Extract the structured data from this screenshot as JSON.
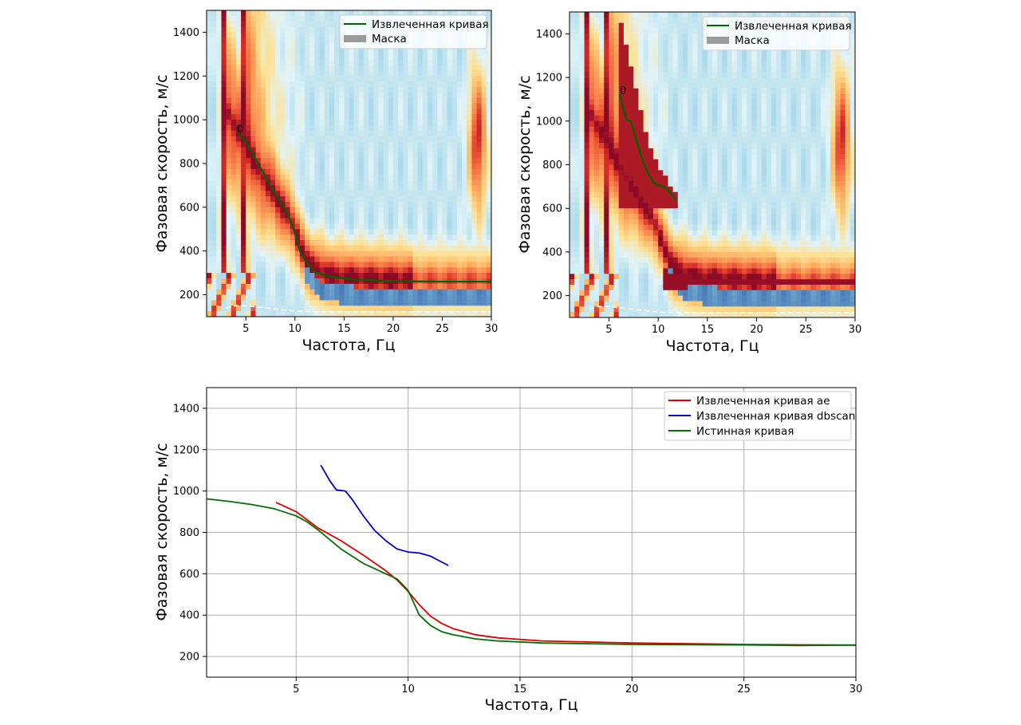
{
  "chart_data": [
    {
      "type": "heatmap",
      "xlabel": "Частота, Гц",
      "ylabel": "Фазовая скорость, м/с",
      "xlim": [
        1,
        30
      ],
      "ylim": [
        100,
        1500
      ],
      "xticks": [
        5,
        10,
        15,
        20,
        25,
        30
      ],
      "yticks": [
        200,
        400,
        600,
        800,
        1000,
        1200,
        1400
      ],
      "grid": false,
      "legend_position": "top-right",
      "legend": [
        "Извлеченная кривая",
        "Маска"
      ],
      "annotation": "0",
      "colormap": "RdYlBu (reversed)",
      "series": [
        {
          "name": "Извлеченная кривая",
          "color": "#006400",
          "x": [
            4.1,
            5.0,
            6.0,
            7.0,
            8.0,
            9.0,
            9.5,
            10.0,
            10.5,
            11.0,
            11.5,
            12.0,
            13.0,
            14.0,
            16.0,
            20.0,
            25.0,
            30.0
          ],
          "y": [
            945,
            900,
            820,
            740,
            660,
            590,
            545,
            480,
            400,
            360,
            330,
            305,
            290,
            280,
            270,
            262,
            260,
            260
          ]
        },
        {
          "name": "dashed reference",
          "color": "#ffffff",
          "dashed": true,
          "x": [
            3.0,
            4.0,
            5.0,
            6.0,
            8.0,
            10.0,
            12.0,
            20.0,
            30.0
          ],
          "y": [
            140,
            150,
            150,
            145,
            135,
            125,
            122,
            122,
            122
          ]
        }
      ]
    },
    {
      "type": "heatmap",
      "xlabel": "Частота, Гц",
      "ylabel": "Фазовая скорость, м/с",
      "xlim": [
        1,
        30
      ],
      "ylim": [
        100,
        1500
      ],
      "xticks": [
        5,
        10,
        15,
        20,
        25,
        30
      ],
      "yticks": [
        200,
        400,
        600,
        800,
        1000,
        1200,
        1400
      ],
      "grid": false,
      "legend_position": "top-right",
      "legend": [
        "Извлеченная кривая",
        "Маска"
      ],
      "annotation": "0",
      "colormap": "RdYlBu (reversed)",
      "series": [
        {
          "name": "Извлеченная кривая",
          "color": "#006400",
          "x": [
            6.1,
            6.5,
            6.8,
            7.2,
            7.5,
            8.0,
            8.5,
            9.0,
            9.5,
            10.0,
            10.5,
            11.0,
            11.8
          ],
          "y": [
            1125,
            1050,
            1005,
            1000,
            960,
            880,
            810,
            760,
            720,
            705,
            700,
            685,
            640
          ]
        },
        {
          "name": "dashed reference",
          "color": "#ffffff",
          "dashed": true,
          "x": [
            3.0,
            4.0,
            5.0,
            6.0,
            8.0,
            10.0,
            12.0,
            20.0,
            30.0
          ],
          "y": [
            140,
            150,
            150,
            145,
            135,
            125,
            122,
            122,
            122
          ]
        }
      ]
    },
    {
      "type": "line",
      "xlabel": "Частота, Гц",
      "ylabel": "Фазовая скорость, м/с",
      "xlim": [
        1,
        30
      ],
      "ylim": [
        100,
        1500
      ],
      "xticks": [
        5,
        10,
        15,
        20,
        25,
        30
      ],
      "yticks": [
        200,
        400,
        600,
        800,
        1000,
        1200,
        1400
      ],
      "grid": true,
      "legend_position": "top-right",
      "series": [
        {
          "name": "Извлеченная кривая ae",
          "color": "#e00000",
          "x": [
            4.1,
            5.0,
            6.0,
            7.0,
            8.0,
            9.0,
            9.5,
            10.0,
            10.5,
            11.0,
            11.5,
            12.0,
            13.0,
            14.0,
            16.0,
            20.0,
            25.0,
            30.0
          ],
          "y": [
            945,
            900,
            820,
            760,
            690,
            615,
            570,
            515,
            450,
            395,
            360,
            335,
            305,
            290,
            275,
            265,
            258,
            255
          ]
        },
        {
          "name": "Извлеченная кривая dbscan",
          "color": "#0000cc",
          "x": [
            6.1,
            6.5,
            6.8,
            7.2,
            7.5,
            8.0,
            8.5,
            9.0,
            9.5,
            10.0,
            10.5,
            11.0,
            11.8
          ],
          "y": [
            1125,
            1050,
            1005,
            1000,
            960,
            880,
            810,
            760,
            720,
            705,
            700,
            685,
            640
          ]
        },
        {
          "name": "Истинная кривая",
          "color": "#007000",
          "x": [
            1.0,
            2.0,
            3.0,
            4.0,
            5.0,
            5.5,
            6.0,
            6.5,
            7.0,
            8.0,
            9.0,
            9.5,
            10.0,
            10.5,
            11.0,
            11.5,
            12.0,
            13.0,
            14.0,
            16.0,
            20.0,
            25.0,
            27.5,
            30.0
          ],
          "y": [
            962,
            950,
            935,
            915,
            880,
            850,
            810,
            765,
            720,
            650,
            600,
            575,
            520,
            400,
            350,
            320,
            305,
            285,
            275,
            265,
            258,
            256,
            253,
            255
          ]
        }
      ]
    }
  ]
}
